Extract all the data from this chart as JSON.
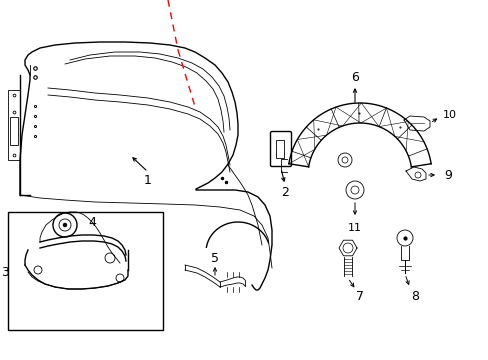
{
  "bg_color": "#ffffff",
  "line_color": "#000000",
  "red_color": "#ff0000",
  "lw_main": 1.0,
  "lw_thin": 0.6,
  "label_fs": 9,
  "figsize": [
    4.89,
    3.6
  ],
  "dpi": 100
}
